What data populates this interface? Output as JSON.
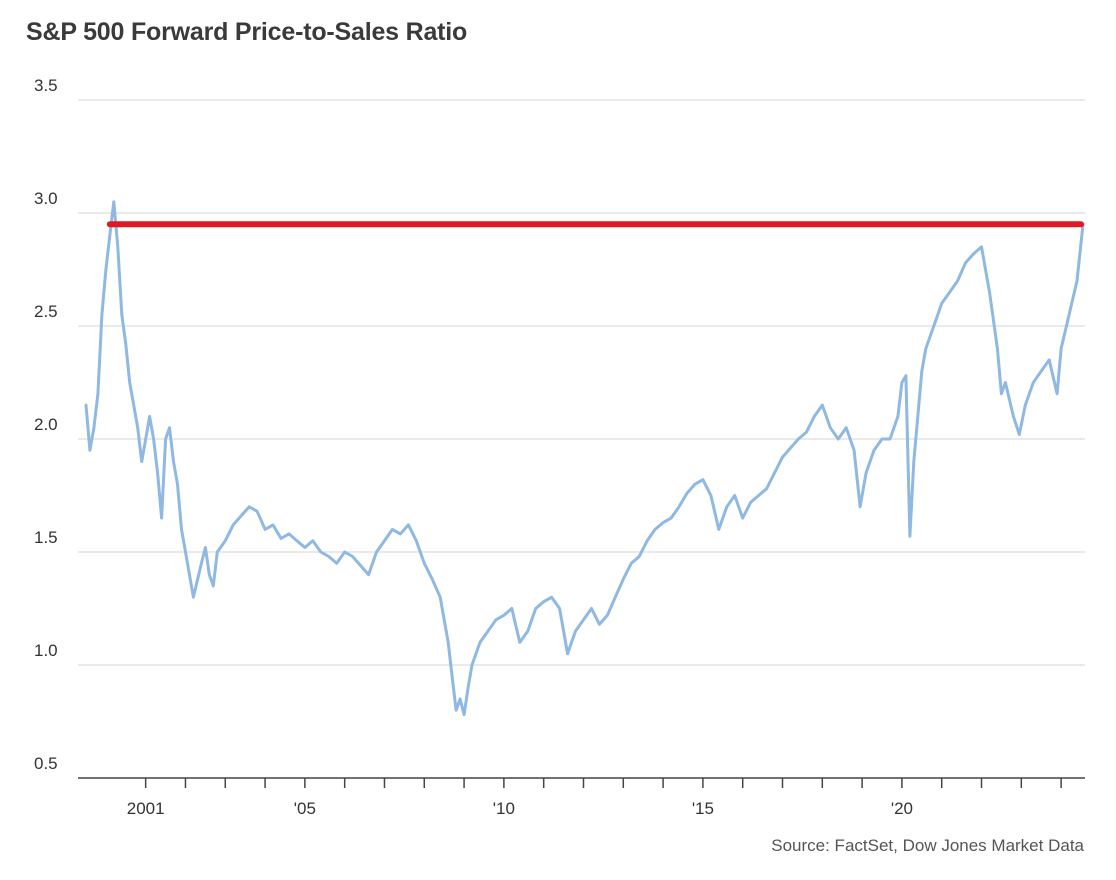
{
  "chart_data": {
    "type": "line",
    "title": "S&P 500 Forward Price-to-Sales Ratio",
    "source": "Source: FactSet, Dow Jones Market Data",
    "xlabel": "",
    "ylabel": "",
    "xlim": [
      1999.3,
      2024.6
    ],
    "ylim": [
      0.5,
      3.5
    ],
    "yticks": [
      {
        "value": 0.5,
        "label": "0.5"
      },
      {
        "value": 1.0,
        "label": "1.0"
      },
      {
        "value": 1.5,
        "label": "1.5"
      },
      {
        "value": 2.0,
        "label": "2.0"
      },
      {
        "value": 2.5,
        "label": "2.5"
      },
      {
        "value": 3.0,
        "label": "3.0"
      },
      {
        "value": 3.5,
        "label": "3.5"
      }
    ],
    "xticks": [
      {
        "value": 2001,
        "label": "2001"
      },
      {
        "value": 2005,
        "label": "'05"
      },
      {
        "value": 2010,
        "label": "'10"
      },
      {
        "value": 2015,
        "label": "'15"
      },
      {
        "value": 2020,
        "label": "'20"
      }
    ],
    "minor_xticks": [
      2002,
      2003,
      2004,
      2006,
      2007,
      2008,
      2009,
      2011,
      2012,
      2013,
      2014,
      2016,
      2017,
      2018,
      2019,
      2021,
      2022,
      2023,
      2024
    ],
    "grid": true,
    "colors": {
      "series": "#8fb8e2",
      "reference": "#e01a22",
      "grid": "#e4e4e4",
      "axis": "#444444"
    },
    "series": [
      {
        "x": [
          1999.5,
          1999.6,
          1999.7,
          1999.8,
          1999.9,
          2000.0,
          2000.1,
          2000.2,
          2000.3,
          2000.4,
          2000.5,
          2000.6,
          2000.7,
          2000.8,
          2000.9,
          2001.0,
          2001.1,
          2001.2,
          2001.3,
          2001.4,
          2001.5,
          2001.6,
          2001.7,
          2001.8,
          2001.9,
          2002.0,
          2002.2,
          2002.4,
          2002.5,
          2002.6,
          2002.7,
          2002.8,
          2003.0,
          2003.2,
          2003.4,
          2003.6,
          2003.8,
          2004.0,
          2004.2,
          2004.4,
          2004.6,
          2004.8,
          2005.0,
          2005.2,
          2005.4,
          2005.6,
          2005.8,
          2006.0,
          2006.2,
          2006.4,
          2006.6,
          2006.8,
          2007.0,
          2007.2,
          2007.4,
          2007.6,
          2007.8,
          2008.0,
          2008.2,
          2008.4,
          2008.6,
          2008.7,
          2008.8,
          2008.9,
          2009.0,
          2009.1,
          2009.2,
          2009.4,
          2009.6,
          2009.8,
          2010.0,
          2010.2,
          2010.4,
          2010.6,
          2010.8,
          2011.0,
          2011.2,
          2011.4,
          2011.6,
          2011.7,
          2011.8,
          2012.0,
          2012.2,
          2012.4,
          2012.6,
          2012.8,
          2013.0,
          2013.2,
          2013.4,
          2013.6,
          2013.8,
          2014.0,
          2014.2,
          2014.4,
          2014.6,
          2014.8,
          2015.0,
          2015.2,
          2015.4,
          2015.6,
          2015.8,
          2016.0,
          2016.2,
          2016.4,
          2016.6,
          2016.8,
          2017.0,
          2017.2,
          2017.4,
          2017.6,
          2017.8,
          2018.0,
          2018.2,
          2018.4,
          2018.6,
          2018.8,
          2018.95,
          2019.1,
          2019.3,
          2019.5,
          2019.7,
          2019.9,
          2020.0,
          2020.1,
          2020.2,
          2020.3,
          2020.4,
          2020.5,
          2020.6,
          2020.8,
          2021.0,
          2021.2,
          2021.4,
          2021.6,
          2021.8,
          2022.0,
          2022.2,
          2022.4,
          2022.5,
          2022.6,
          2022.8,
          2022.95,
          2023.1,
          2023.3,
          2023.5,
          2023.7,
          2023.9,
          2024.0,
          2024.2,
          2024.4,
          2024.55
        ],
        "y": [
          2.15,
          1.95,
          2.05,
          2.2,
          2.55,
          2.75,
          2.9,
          3.05,
          2.85,
          2.55,
          2.42,
          2.25,
          2.15,
          2.05,
          1.9,
          2.0,
          2.1,
          2.0,
          1.85,
          1.65,
          2.0,
          2.05,
          1.9,
          1.8,
          1.6,
          1.5,
          1.3,
          1.45,
          1.52,
          1.4,
          1.35,
          1.5,
          1.55,
          1.62,
          1.66,
          1.7,
          1.68,
          1.6,
          1.62,
          1.56,
          1.58,
          1.55,
          1.52,
          1.55,
          1.5,
          1.48,
          1.45,
          1.5,
          1.48,
          1.44,
          1.4,
          1.5,
          1.55,
          1.6,
          1.58,
          1.62,
          1.55,
          1.45,
          1.38,
          1.3,
          1.1,
          0.95,
          0.8,
          0.85,
          0.78,
          0.9,
          1.0,
          1.1,
          1.15,
          1.2,
          1.22,
          1.25,
          1.1,
          1.15,
          1.25,
          1.28,
          1.3,
          1.25,
          1.05,
          1.1,
          1.15,
          1.2,
          1.25,
          1.18,
          1.22,
          1.3,
          1.38,
          1.45,
          1.48,
          1.55,
          1.6,
          1.63,
          1.65,
          1.7,
          1.76,
          1.8,
          1.82,
          1.75,
          1.6,
          1.7,
          1.75,
          1.65,
          1.72,
          1.75,
          1.78,
          1.85,
          1.92,
          1.96,
          2.0,
          2.03,
          2.1,
          2.15,
          2.05,
          2.0,
          2.05,
          1.95,
          1.7,
          1.85,
          1.95,
          2.0,
          2.0,
          2.1,
          2.25,
          2.28,
          1.57,
          1.9,
          2.1,
          2.3,
          2.4,
          2.5,
          2.6,
          2.65,
          2.7,
          2.78,
          2.82,
          2.85,
          2.65,
          2.4,
          2.2,
          2.25,
          2.1,
          2.02,
          2.15,
          2.25,
          2.3,
          2.35,
          2.2,
          2.4,
          2.55,
          2.7,
          2.95
        ]
      }
    ],
    "reference_lines": [
      {
        "y": 2.95,
        "x_start": 2000.1,
        "x_end": 2024.5
      }
    ]
  }
}
